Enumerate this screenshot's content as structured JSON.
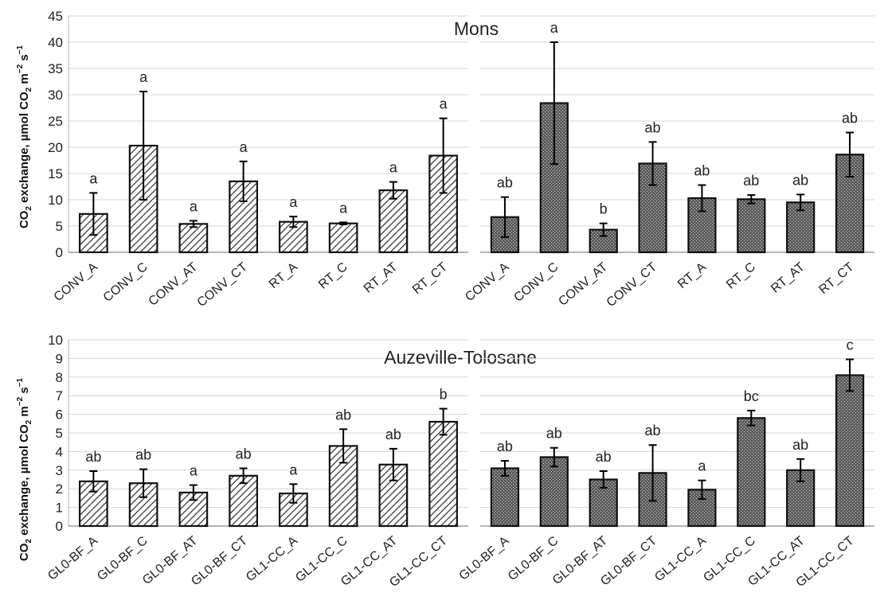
{
  "ylabel_text": "exchange, µmol CO",
  "ylabel_parts": {
    "co": "CO",
    "sub2": "2",
    "m": " m",
    "sup_m": "−2",
    "s": " s",
    "sup_s": "−1"
  },
  "chart_data": [
    {
      "type": "bar",
      "site": "Mons",
      "panel": "left",
      "categories": [
        "CONV_A",
        "CONV_C",
        "CONV_AT",
        "CONV_CT",
        "RT_A",
        "RT_C",
        "RT_AT",
        "RT_CT"
      ],
      "values": [
        7.3,
        20.3,
        5.4,
        13.5,
        5.8,
        5.5,
        11.8,
        18.4
      ],
      "errors": [
        4.0,
        10.3,
        0.6,
        3.8,
        1.0,
        0.2,
        1.6,
        7.1
      ],
      "significance": [
        "a",
        "a",
        "a",
        "a",
        "a",
        "a",
        "a",
        "a"
      ],
      "ylim": [
        0,
        45
      ],
      "yticks": [
        0,
        5,
        10,
        15,
        20,
        25,
        30,
        35,
        40,
        45
      ],
      "pattern": "diagonal-hatch",
      "grid": true
    },
    {
      "type": "bar",
      "site": "",
      "panel": "right",
      "categories": [
        "CONV_A",
        "CONV_C",
        "CONV_AT",
        "CONV_CT",
        "RT_A",
        "RT_C",
        "RT_AT",
        "RT_CT"
      ],
      "values": [
        6.7,
        28.4,
        4.3,
        16.9,
        10.3,
        10.1,
        9.5,
        18.6
      ],
      "errors": [
        3.8,
        11.6,
        1.2,
        4.1,
        2.5,
        0.8,
        1.5,
        4.2
      ],
      "significance": [
        "ab",
        "a",
        "b",
        "ab",
        "ab",
        "ab",
        "ab",
        "ab"
      ],
      "ylim": [
        0,
        45
      ],
      "pattern": "crosshatch",
      "grid": true
    },
    {
      "type": "bar",
      "site": "Auzeville-Tolosane",
      "panel": "left",
      "categories": [
        "GL0-BF_A",
        "GL0-BF_C",
        "GL0-BF_AT",
        "GL0-BF_CT",
        "GL1-CC_A",
        "GL1-CC_C",
        "GL1-CC_AT",
        "GL1-CC_CT"
      ],
      "values": [
        2.4,
        2.3,
        1.8,
        2.7,
        1.75,
        4.3,
        3.3,
        5.6
      ],
      "errors": [
        0.55,
        0.75,
        0.4,
        0.4,
        0.5,
        0.9,
        0.85,
        0.7
      ],
      "significance": [
        "ab",
        "ab",
        "a",
        "ab",
        "a",
        "ab",
        "ab",
        "b"
      ],
      "ylim": [
        0,
        10
      ],
      "yticks": [
        0,
        1,
        2,
        3,
        4,
        5,
        6,
        7,
        8,
        9,
        10
      ],
      "pattern": "diagonal-hatch",
      "grid": true
    },
    {
      "type": "bar",
      "site": "",
      "panel": "right",
      "categories": [
        "GL0-BF_A",
        "GL0-BF_C",
        "GL0-BF_AT",
        "GL0-BF_CT",
        "GL1-CC_A",
        "GL1-CC_C",
        "GL1-CC_AT",
        "GL1-CC_CT"
      ],
      "values": [
        3.1,
        3.7,
        2.5,
        2.85,
        1.95,
        5.8,
        3.0,
        8.1
      ],
      "errors": [
        0.4,
        0.5,
        0.45,
        1.5,
        0.5,
        0.4,
        0.6,
        0.85
      ],
      "significance": [
        "ab",
        "ab",
        "ab",
        "ab",
        "a",
        "bc",
        "ab",
        "c"
      ],
      "ylim": [
        0,
        10
      ],
      "pattern": "crosshatch",
      "grid": true
    }
  ]
}
